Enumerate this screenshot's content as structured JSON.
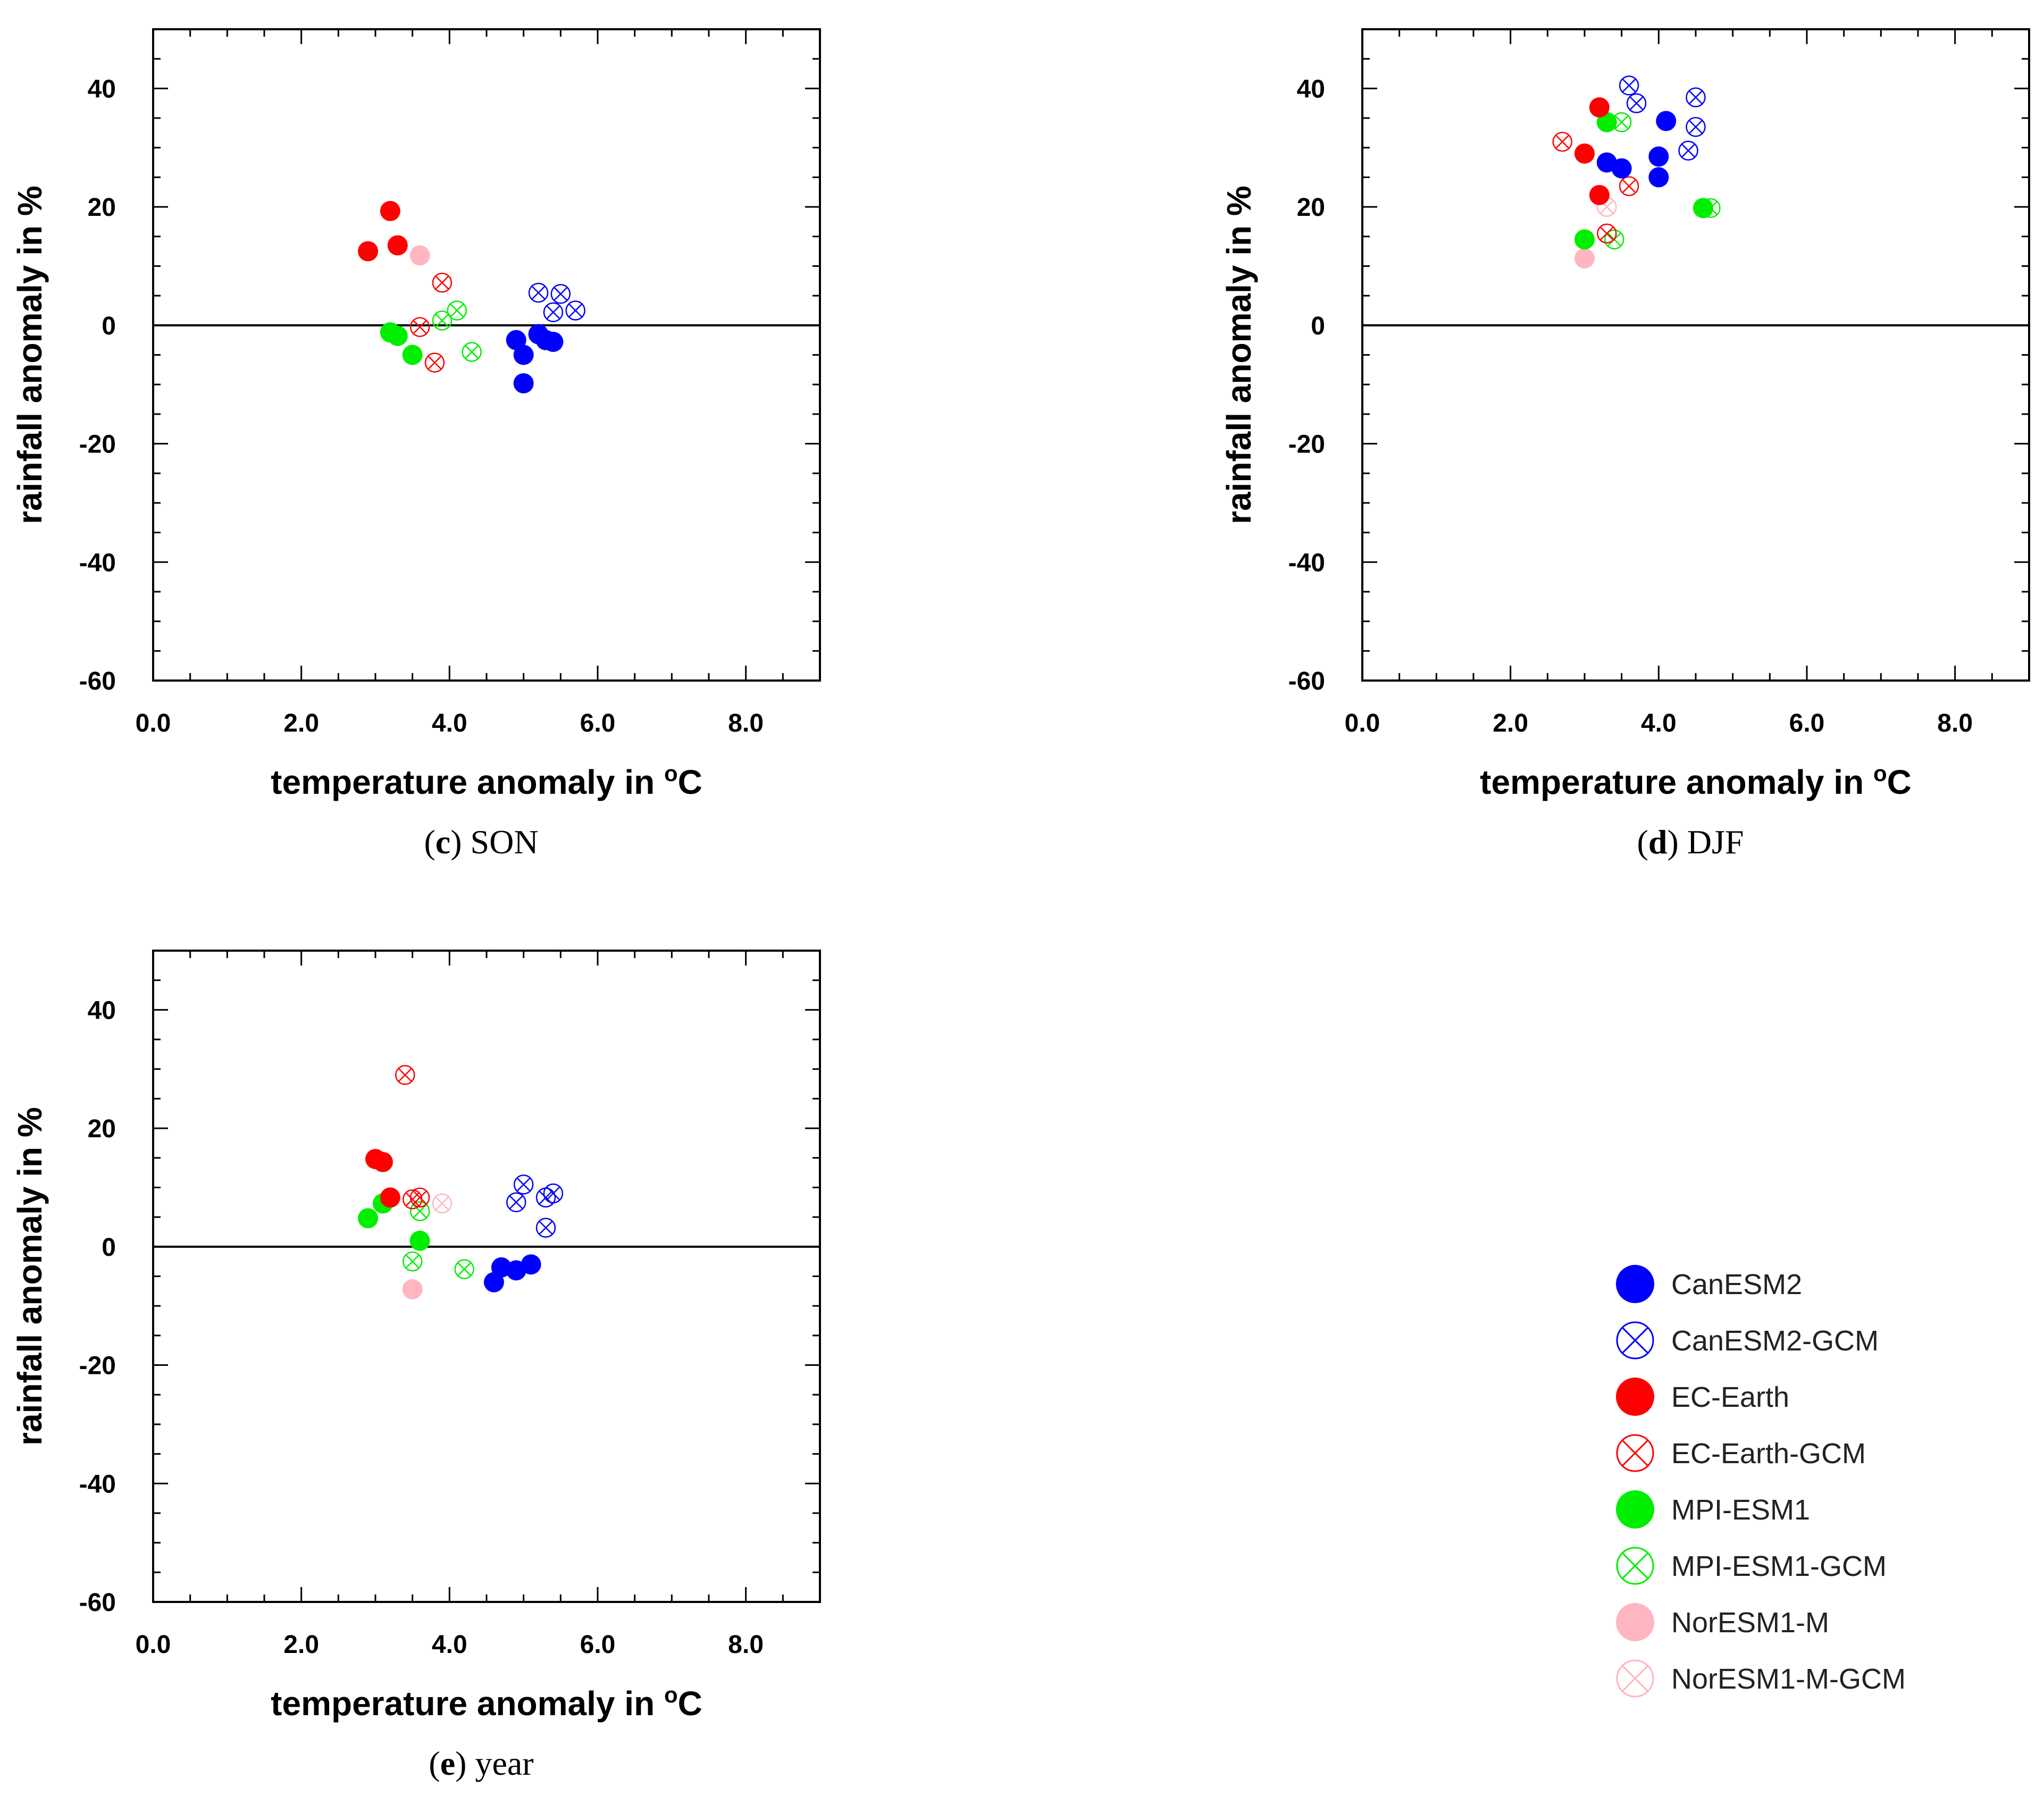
{
  "chart_data": [
    {
      "type": "scatter",
      "panel": "c",
      "caption_letter": "c",
      "caption_text": " SON",
      "xlabel": "temperature anomaly in ",
      "xlabel_unit_sup": "o",
      "xlabel_unit": "C",
      "ylabel": "rainfall anomaly in %",
      "xlim": [
        0,
        9
      ],
      "ylim": [
        -60,
        50
      ],
      "xticks": [
        0,
        2,
        4,
        6,
        8
      ],
      "xtick_labels": [
        "0.0",
        "2.0",
        "4.0",
        "6.0",
        "8.0"
      ],
      "yticks": [
        -60,
        -40,
        -20,
        0,
        20,
        40
      ],
      "ytick_labels": [
        "-60",
        "-40",
        "-20",
        "0",
        "20",
        "40"
      ],
      "reference_line_y": 0,
      "series": [
        {
          "name": "CanESM2",
          "points": [
            [
              4.9,
              -2.5
            ],
            [
              5.0,
              -5.0
            ],
            [
              5.0,
              -9.8
            ],
            [
              5.2,
              -1.5
            ],
            [
              5.3,
              -2.5
            ],
            [
              5.4,
              -2.8
            ]
          ]
        },
        {
          "name": "CanESM2-GCM",
          "points": [
            [
              5.2,
              5.5
            ],
            [
              5.5,
              5.3
            ],
            [
              5.7,
              2.5
            ],
            [
              5.4,
              2.2
            ],
            [
              5.4,
              -2.8
            ]
          ]
        },
        {
          "name": "EC-Earth",
          "points": [
            [
              2.9,
              12.5
            ],
            [
              3.2,
              19.3
            ],
            [
              3.3,
              13.5
            ]
          ]
        },
        {
          "name": "EC-Earth-GCM",
          "points": [
            [
              3.9,
              7.2
            ],
            [
              3.6,
              -0.3
            ],
            [
              3.8,
              -6.3
            ]
          ]
        },
        {
          "name": "MPI-ESM1",
          "points": [
            [
              3.2,
              -1.2
            ],
            [
              3.3,
              -1.8
            ],
            [
              3.5,
              -5.0
            ]
          ]
        },
        {
          "name": "MPI-ESM1-GCM",
          "points": [
            [
              4.1,
              2.5
            ],
            [
              3.9,
              0.8
            ],
            [
              4.3,
              -4.5
            ]
          ]
        },
        {
          "name": "NorESM1-M",
          "points": [
            [
              3.6,
              11.8
            ]
          ]
        },
        {
          "name": "NorESM1-M-GCM",
          "points": []
        }
      ]
    },
    {
      "type": "scatter",
      "panel": "d",
      "caption_letter": "d",
      "caption_text": " DJF",
      "xlabel": "temperature anomaly in ",
      "xlabel_unit_sup": "o",
      "xlabel_unit": "C",
      "ylabel": "rainfall anomaly in %",
      "xlim": [
        0,
        9
      ],
      "ylim": [
        -60,
        50
      ],
      "xticks": [
        0,
        2,
        4,
        6,
        8
      ],
      "xtick_labels": [
        "0.0",
        "2.0",
        "4.0",
        "6.0",
        "8.0"
      ],
      "yticks": [
        -60,
        -40,
        -20,
        0,
        20,
        40
      ],
      "ytick_labels": [
        "-60",
        "-40",
        "-20",
        "0",
        "20",
        "40"
      ],
      "reference_line_y": 0,
      "series": [
        {
          "name": "CanESM2",
          "points": [
            [
              4.1,
              34.5
            ],
            [
              3.3,
              27.5
            ],
            [
              3.5,
              26.5
            ],
            [
              4.0,
              28.5
            ],
            [
              4.0,
              25.0
            ]
          ]
        },
        {
          "name": "CanESM2-GCM",
          "points": [
            [
              3.6,
              40.5
            ],
            [
              3.7,
              37.5
            ],
            [
              4.5,
              38.5
            ],
            [
              4.5,
              33.5
            ],
            [
              4.4,
              29.5
            ]
          ]
        },
        {
          "name": "EC-Earth",
          "points": [
            [
              3.2,
              36.8
            ],
            [
              3.0,
              29.0
            ],
            [
              3.2,
              22.0
            ]
          ]
        },
        {
          "name": "EC-Earth-GCM",
          "points": [
            [
              2.7,
              31.0
            ],
            [
              3.6,
              23.5
            ],
            [
              3.3,
              15.5
            ]
          ]
        },
        {
          "name": "MPI-ESM1",
          "points": [
            [
              3.3,
              34.3
            ],
            [
              4.6,
              19.8
            ],
            [
              3.0,
              14.5
            ]
          ]
        },
        {
          "name": "MPI-ESM1-GCM",
          "points": [
            [
              3.5,
              34.3
            ],
            [
              4.7,
              19.8
            ],
            [
              3.4,
              14.5
            ]
          ]
        },
        {
          "name": "NorESM1-M",
          "points": [
            [
              3.0,
              11.3
            ]
          ]
        },
        {
          "name": "NorESM1-M-GCM",
          "points": [
            [
              3.3,
              20.0
            ]
          ]
        }
      ]
    },
    {
      "type": "scatter",
      "panel": "e",
      "caption_letter": "e",
      "caption_text": " year",
      "xlabel": "temperature anomaly in ",
      "xlabel_unit_sup": "o",
      "xlabel_unit": "C",
      "ylabel": "rainfall anomaly in %",
      "xlim": [
        0,
        9
      ],
      "ylim": [
        -60,
        50
      ],
      "xticks": [
        0,
        2,
        4,
        6,
        8
      ],
      "xtick_labels": [
        "0.0",
        "2.0",
        "4.0",
        "6.0",
        "8.0"
      ],
      "yticks": [
        -60,
        -40,
        -20,
        0,
        20,
        40
      ],
      "ytick_labels": [
        "-60",
        "-40",
        "-20",
        "0",
        "20",
        "40"
      ],
      "reference_line_y": 0,
      "series": [
        {
          "name": "CanESM2",
          "points": [
            [
              4.6,
              -6.0
            ],
            [
              4.7,
              -3.5
            ],
            [
              4.9,
              -4.0
            ],
            [
              5.1,
              -3.0
            ]
          ]
        },
        {
          "name": "CanESM2-GCM",
          "points": [
            [
              4.9,
              7.5
            ],
            [
              5.0,
              10.5
            ],
            [
              5.3,
              8.3
            ],
            [
              5.4,
              9.0
            ],
            [
              5.3,
              3.2
            ]
          ]
        },
        {
          "name": "EC-Earth",
          "points": [
            [
              3.0,
              14.8
            ],
            [
              3.1,
              14.3
            ],
            [
              3.2,
              8.3
            ]
          ]
        },
        {
          "name": "EC-Earth-GCM",
          "points": [
            [
              3.4,
              29.0
            ],
            [
              3.5,
              8.0
            ],
            [
              3.6,
              8.3
            ]
          ]
        },
        {
          "name": "MPI-ESM1",
          "points": [
            [
              2.9,
              4.8
            ],
            [
              3.1,
              7.3
            ],
            [
              3.6,
              1.0
            ]
          ]
        },
        {
          "name": "MPI-ESM1-GCM",
          "points": [
            [
              3.6,
              6.0
            ],
            [
              3.5,
              -2.5
            ],
            [
              4.2,
              -3.8
            ]
          ]
        },
        {
          "name": "NorESM1-M",
          "points": [
            [
              3.5,
              -7.2
            ]
          ]
        },
        {
          "name": "NorESM1-M-GCM",
          "points": [
            [
              3.9,
              7.3
            ]
          ]
        }
      ]
    }
  ],
  "legend": {
    "entries": [
      {
        "name": "CanESM2",
        "color": "#0000ff",
        "style": "filled"
      },
      {
        "name": "CanESM2-GCM",
        "color": "#0000ff",
        "style": "crossed"
      },
      {
        "name": "EC-Earth",
        "color": "#ff0000",
        "style": "filled"
      },
      {
        "name": "EC-Earth-GCM",
        "color": "#ff0000",
        "style": "crossed"
      },
      {
        "name": "MPI-ESM1",
        "color": "#00ee00",
        "style": "filled"
      },
      {
        "name": "MPI-ESM1-GCM",
        "color": "#00ee00",
        "style": "crossed"
      },
      {
        "name": "NorESM1-M",
        "color": "#ffb6c1",
        "style": "filled"
      },
      {
        "name": "NorESM1-M-GCM",
        "color": "#ffb6c1",
        "style": "crossed"
      }
    ]
  }
}
